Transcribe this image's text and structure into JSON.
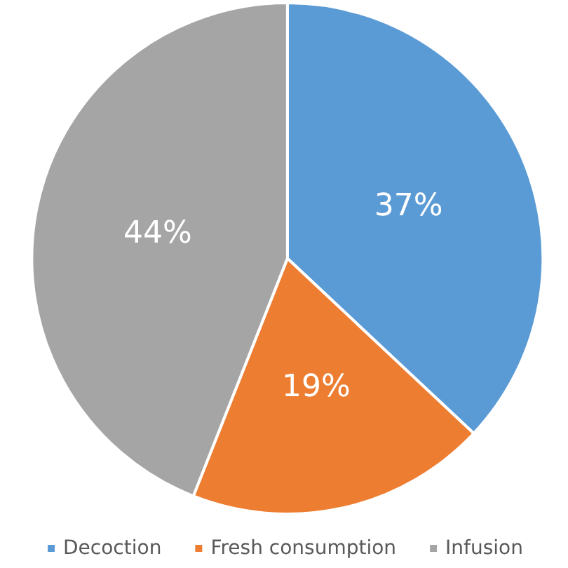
{
  "chart_data": {
    "type": "pie",
    "categories": [
      "Decoction",
      "Fresh consumption",
      "Infusion"
    ],
    "values": [
      37,
      19,
      44
    ],
    "value_labels": [
      "37%",
      "19%",
      "44%"
    ],
    "colors": [
      "#5b9bd5",
      "#ed7d31",
      "#a5a5a5"
    ],
    "legend": "bottom"
  }
}
